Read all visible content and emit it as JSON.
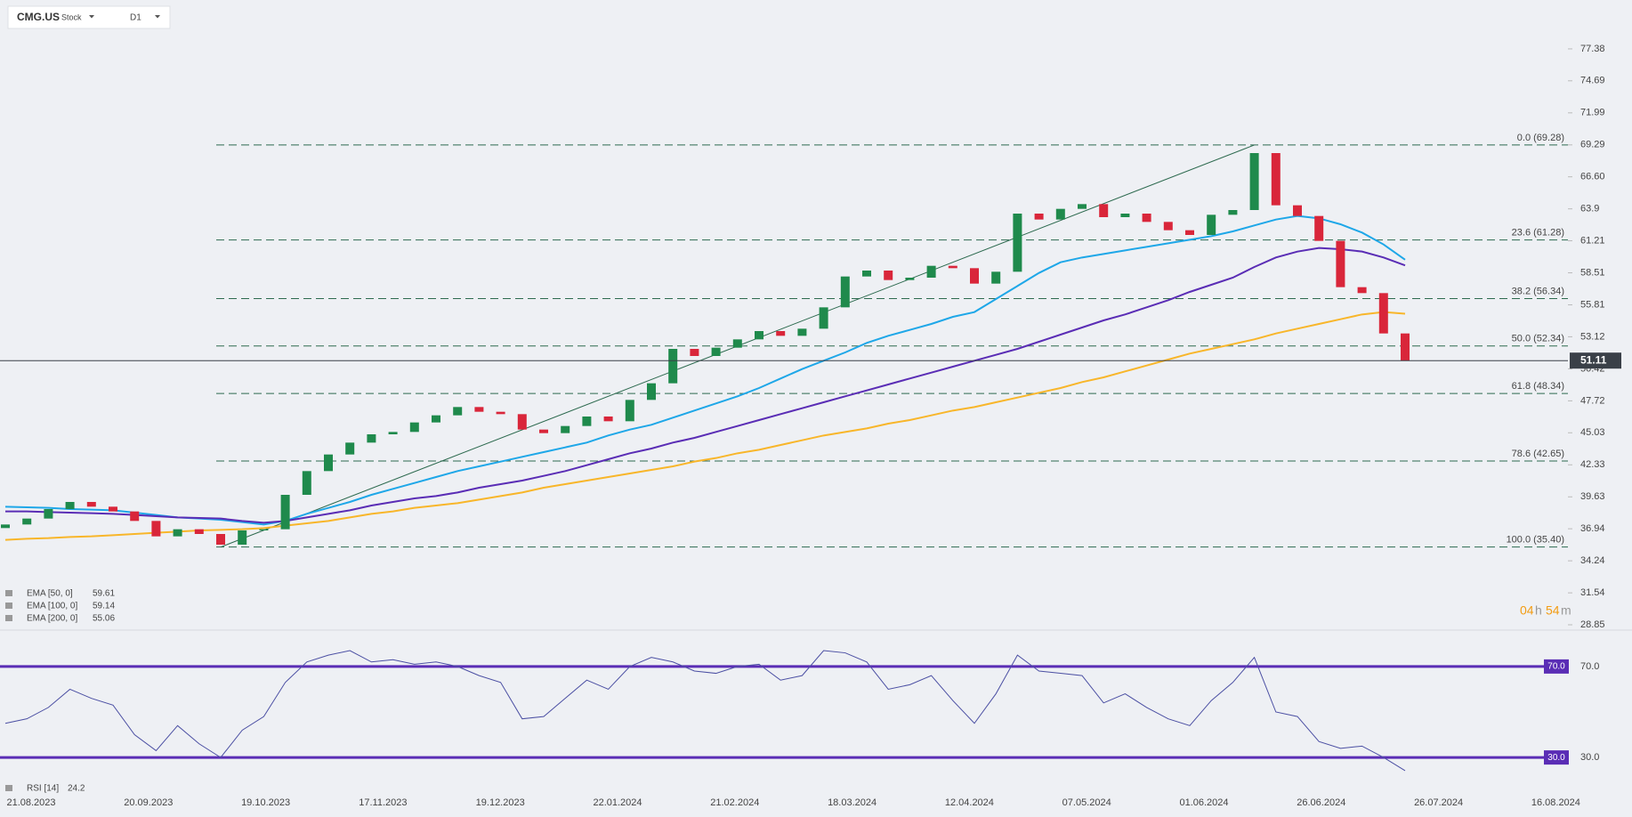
{
  "toolbar": {
    "symbol": "CMG.US",
    "kind": "Stock",
    "interval": "D1"
  },
  "timer": [
    "04",
    "h",
    "54",
    "m"
  ],
  "chart_data": [
    {
      "type": "candlestick",
      "ylim": [
        28.4,
        81.5
      ],
      "yticks": [
        77.38,
        74.69,
        71.99,
        69.29,
        {
          "value": 66.6,
          "label": "66.60"
        },
        63.9,
        61.21,
        58.51,
        55.81,
        53.12,
        50.42,
        47.72,
        45.03,
        42.33,
        39.63,
        36.94,
        34.24,
        31.54,
        28.85
      ],
      "x_labels": [
        "21.08.2023",
        "20.09.2023",
        "19.10.2023",
        "17.11.2023",
        "19.12.2023",
        "22.01.2024",
        "21.02.2024",
        "18.03.2024",
        "12.04.2024",
        "07.05.2024",
        "01.06.2024",
        "26.06.2024",
        "26.07.2024",
        "16.08.2024"
      ],
      "up_color": "#1f8a4c",
      "down_color": "#d9263a",
      "open": [
        37.0,
        37.3,
        37.8,
        38.6,
        39.2,
        38.8,
        38.4,
        37.6,
        36.3,
        36.9,
        36.5,
        35.6,
        36.8,
        36.9,
        39.8,
        41.8,
        43.2,
        44.2,
        44.9,
        45.1,
        45.9,
        46.5,
        47.2,
        46.8,
        46.6,
        45.3,
        45.0,
        45.6,
        46.4,
        46.0,
        47.8,
        49.2,
        52.1,
        51.5,
        52.2,
        52.9,
        53.6,
        53.2,
        53.8,
        55.6,
        58.2,
        58.7,
        57.9,
        58.1,
        59.1,
        58.9,
        57.6,
        58.6,
        63.5,
        63.0,
        63.9,
        64.3,
        63.2,
        63.5,
        62.8,
        62.1,
        61.7,
        63.4,
        63.8,
        68.6,
        64.2,
        63.3,
        61.2,
        57.3,
        56.8,
        53.4
      ],
      "close": [
        37.3,
        37.8,
        38.6,
        39.2,
        38.8,
        38.4,
        37.6,
        36.3,
        36.9,
        36.5,
        35.6,
        36.8,
        36.9,
        39.8,
        41.8,
        43.2,
        44.2,
        44.9,
        45.1,
        45.9,
        46.5,
        47.2,
        46.8,
        46.6,
        45.3,
        45.0,
        45.6,
        46.4,
        46.0,
        47.8,
        49.2,
        52.1,
        51.5,
        52.2,
        52.9,
        53.6,
        53.2,
        53.8,
        55.6,
        58.2,
        58.7,
        57.9,
        58.1,
        59.1,
        58.9,
        57.6,
        58.6,
        63.5,
        63.0,
        63.9,
        64.3,
        63.2,
        63.5,
        62.8,
        62.1,
        61.7,
        63.4,
        63.8,
        68.6,
        64.2,
        63.3,
        61.2,
        57.3,
        56.8,
        53.4,
        51.11
      ],
      "lines": [
        {
          "name": "EMA [50, 0]",
          "color": "#1ea7e8",
          "values": [
            38.8,
            38.75,
            38.7,
            38.6,
            38.55,
            38.5,
            38.3,
            38.1,
            37.9,
            37.8,
            37.7,
            37.5,
            37.3,
            37.6,
            38.2,
            38.7,
            39.2,
            39.8,
            40.3,
            40.8,
            41.3,
            41.8,
            42.2,
            42.6,
            43.0,
            43.4,
            43.8,
            44.2,
            44.8,
            45.3,
            45.7,
            46.3,
            46.9,
            47.5,
            48.1,
            48.8,
            49.6,
            50.4,
            51.1,
            51.8,
            52.6,
            53.2,
            53.7,
            54.2,
            54.8,
            55.2,
            56.3,
            57.4,
            58.5,
            59.4,
            59.8,
            60.1,
            60.4,
            60.7,
            61.0,
            61.3,
            61.6,
            62.0,
            62.5,
            63.0,
            63.3,
            63.1,
            62.6,
            61.9,
            60.9,
            59.61
          ]
        },
        {
          "name": "EMA [100, 0]",
          "color": "#5a2db5",
          "values": [
            38.4,
            38.4,
            38.35,
            38.3,
            38.25,
            38.2,
            38.1,
            38.0,
            37.9,
            37.85,
            37.8,
            37.6,
            37.45,
            37.6,
            37.9,
            38.2,
            38.5,
            38.9,
            39.2,
            39.5,
            39.7,
            40.0,
            40.4,
            40.7,
            41.0,
            41.4,
            41.8,
            42.3,
            42.8,
            43.3,
            43.7,
            44.2,
            44.6,
            45.1,
            45.6,
            46.1,
            46.6,
            47.1,
            47.6,
            48.1,
            48.6,
            49.1,
            49.6,
            50.1,
            50.6,
            51.1,
            51.6,
            52.1,
            52.7,
            53.3,
            53.9,
            54.5,
            55.0,
            55.6,
            56.2,
            56.9,
            57.5,
            58.1,
            59.0,
            59.8,
            60.3,
            60.6,
            60.5,
            60.3,
            59.8,
            59.14
          ]
        },
        {
          "name": "EMA [200, 0]",
          "color": "#f8b62a",
          "values": [
            36.0,
            36.1,
            36.15,
            36.25,
            36.3,
            36.4,
            36.5,
            36.6,
            36.7,
            36.8,
            36.85,
            36.9,
            37.0,
            37.2,
            37.4,
            37.6,
            37.9,
            38.2,
            38.4,
            38.7,
            38.9,
            39.1,
            39.4,
            39.7,
            40.0,
            40.4,
            40.7,
            41.0,
            41.3,
            41.6,
            41.9,
            42.2,
            42.6,
            42.9,
            43.3,
            43.6,
            44.0,
            44.4,
            44.8,
            45.1,
            45.4,
            45.8,
            46.1,
            46.5,
            46.9,
            47.2,
            47.6,
            48.0,
            48.4,
            48.8,
            49.3,
            49.7,
            50.2,
            50.7,
            51.2,
            51.7,
            52.1,
            52.5,
            52.9,
            53.4,
            53.8,
            54.2,
            54.6,
            55.0,
            55.2,
            55.06
          ]
        }
      ],
      "fib_levels": [
        {
          "value": 69.28,
          "label": "0.0 (69.28)"
        },
        {
          "value": 61.28,
          "label": "23.6 (61.28)"
        },
        {
          "value": 56.34,
          "label": "38.2 (56.34)"
        },
        {
          "value": 52.34,
          "label": "50.0 (52.34)"
        },
        {
          "value": 48.34,
          "label": "61.8 (48.34)"
        },
        {
          "value": 42.65,
          "label": "78.6 (42.65)"
        },
        {
          "value": 35.4,
          "label": "100.0 (35.40)"
        }
      ],
      "fib_color": "#2d6a4f"
    },
    {
      "type": "line",
      "ylim": [
        14,
        86
      ],
      "yticks": [
        {
          "value": 70,
          "label": "70.0"
        },
        {
          "value": 30,
          "label": "30.0"
        }
      ],
      "level_color": "#5a2db5",
      "series": [
        {
          "name": "RSI [14]",
          "color": "#4b4fa3",
          "values": [
            45,
            47,
            52,
            60,
            56,
            53,
            40,
            33,
            44,
            36,
            30,
            42,
            48,
            63,
            72,
            75,
            77,
            72,
            73,
            71,
            72,
            70,
            66,
            63,
            47,
            48,
            56,
            64,
            60,
            70,
            74,
            72,
            68,
            67,
            70,
            71,
            64,
            66,
            77,
            76,
            72,
            60,
            62,
            66,
            55,
            45,
            58,
            75,
            68,
            67,
            66,
            54,
            58,
            52,
            47,
            44,
            55,
            63,
            74,
            50,
            48,
            37,
            34,
            35,
            30,
            24.2
          ]
        }
      ]
    }
  ]
}
